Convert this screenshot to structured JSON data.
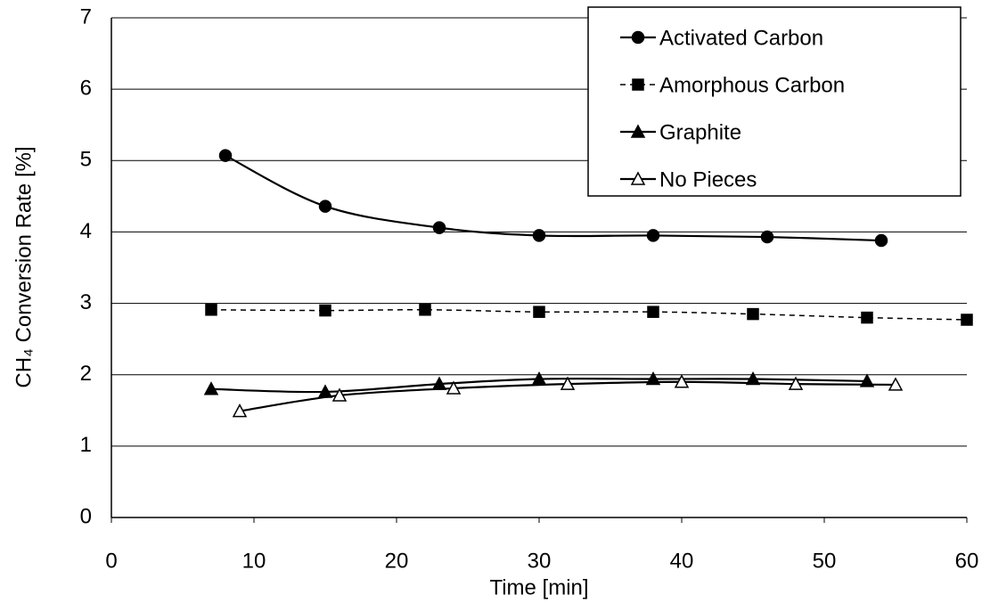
{
  "chart_data": {
    "type": "line",
    "x_label": "Time [min]",
    "y_label": "CH₄ Conversion Rate [%]",
    "xlim": [
      0,
      60
    ],
    "xticks": [
      0,
      10,
      20,
      30,
      40,
      50,
      60
    ],
    "ylim": [
      0,
      7
    ],
    "yticks": [
      0,
      1,
      2,
      3,
      4,
      5,
      6,
      7
    ],
    "grid": true,
    "legend_position": "upper right",
    "smooth": true,
    "series": [
      {
        "name": "Activated Carbon",
        "color": "#000000",
        "marker": "circle",
        "marker_fill": "filled",
        "line_style": "solid",
        "x": [
          8,
          15,
          23,
          30,
          38,
          46,
          54
        ],
        "values": [
          5.07,
          4.36,
          4.06,
          3.95,
          3.95,
          3.93,
          3.88
        ]
      },
      {
        "name": "Amorphous Carbon",
        "color": "#000000",
        "marker": "square",
        "marker_fill": "filled",
        "line_style": "dashed",
        "x": [
          7,
          15,
          22,
          30,
          38,
          45,
          53,
          60
        ],
        "values": [
          2.91,
          2.9,
          2.91,
          2.88,
          2.88,
          2.85,
          2.8,
          2.77
        ]
      },
      {
        "name": "Graphite",
        "color": "#000000",
        "marker": "triangle",
        "marker_fill": "filled",
        "line_style": "solid",
        "x": [
          7,
          15,
          23,
          30,
          38,
          45,
          53
        ],
        "values": [
          1.8,
          1.76,
          1.87,
          1.94,
          1.94,
          1.94,
          1.91
        ]
      },
      {
        "name": "No Pieces",
        "color": "#000000",
        "marker": "triangle",
        "marker_fill": "open",
        "line_style": "solid",
        "x": [
          9,
          16,
          24,
          32,
          40,
          48,
          55
        ],
        "values": [
          1.49,
          1.71,
          1.81,
          1.87,
          1.9,
          1.87,
          1.86
        ]
      }
    ]
  }
}
